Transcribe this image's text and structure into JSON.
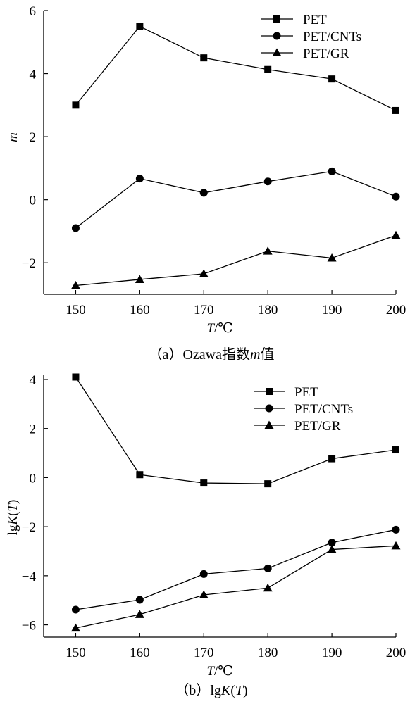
{
  "chart_data": [
    {
      "type": "line",
      "title": "",
      "caption_prefix": "（a）",
      "caption_main": "Ozawa指数",
      "caption_var": "m",
      "caption_suffix": "值",
      "xlabel_var": "T",
      "xlabel_unit": "/℃",
      "ylabel": "m",
      "x": [
        150,
        160,
        170,
        180,
        190,
        200
      ],
      "xticks": [
        "150",
        "160",
        "170",
        "180",
        "190",
        "200"
      ],
      "xlim": [
        145,
        200
      ],
      "yticks": [
        {
          "value": -2,
          "label": "−2"
        },
        {
          "value": 0,
          "label": "0"
        },
        {
          "value": 2,
          "label": "2"
        },
        {
          "value": 4,
          "label": "4"
        },
        {
          "value": 6,
          "label": "6"
        }
      ],
      "ylim": [
        -3,
        6
      ],
      "grid": false,
      "legend_position": "top-right",
      "series": [
        {
          "name": "PET",
          "marker": "square",
          "values": [
            3.0,
            5.5,
            4.5,
            4.13,
            3.83,
            2.83
          ]
        },
        {
          "name": "PET/CNTs",
          "marker": "circle",
          "values": [
            -0.9,
            0.67,
            0.22,
            0.58,
            0.9,
            0.1
          ]
        },
        {
          "name": "PET/GR",
          "marker": "triangle",
          "values": [
            -2.72,
            -2.53,
            -2.35,
            -1.63,
            -1.85,
            -1.13
          ]
        }
      ]
    },
    {
      "type": "line",
      "title": "",
      "caption_prefix": "（b）",
      "caption_main": "lg",
      "caption_var": "K",
      "caption_paren_open": "(",
      "caption_var2": "T",
      "caption_paren_close": ")",
      "xlabel_var": "T",
      "xlabel_unit": "/℃",
      "ylabel_prefix": "lg",
      "ylabel_var": "K",
      "ylabel_paren_open": "(",
      "ylabel_var2": "T",
      "ylabel_paren_close": ")",
      "x": [
        150,
        160,
        170,
        180,
        190,
        200
      ],
      "xticks": [
        "150",
        "160",
        "170",
        "180",
        "190",
        "200"
      ],
      "xlim": [
        145,
        200
      ],
      "yticks": [
        {
          "value": -6,
          "label": "−6"
        },
        {
          "value": -4,
          "label": "−4"
        },
        {
          "value": -2,
          "label": "−2"
        },
        {
          "value": 0,
          "label": "0"
        },
        {
          "value": 2,
          "label": "2"
        },
        {
          "value": 4,
          "label": "4"
        }
      ],
      "ylim": [
        -6.5,
        4.2
      ],
      "grid": false,
      "legend_position": "top-right",
      "series": [
        {
          "name": "PET",
          "marker": "square",
          "values": [
            4.1,
            0.12,
            -0.22,
            -0.25,
            0.77,
            1.13
          ]
        },
        {
          "name": "PET/CNTs",
          "marker": "circle",
          "values": [
            -5.38,
            -4.98,
            -3.93,
            -3.7,
            -2.65,
            -2.12
          ]
        },
        {
          "name": "PET/GR",
          "marker": "triangle",
          "values": [
            -6.13,
            -5.58,
            -4.78,
            -4.5,
            -2.93,
            -2.78
          ]
        }
      ]
    }
  ]
}
